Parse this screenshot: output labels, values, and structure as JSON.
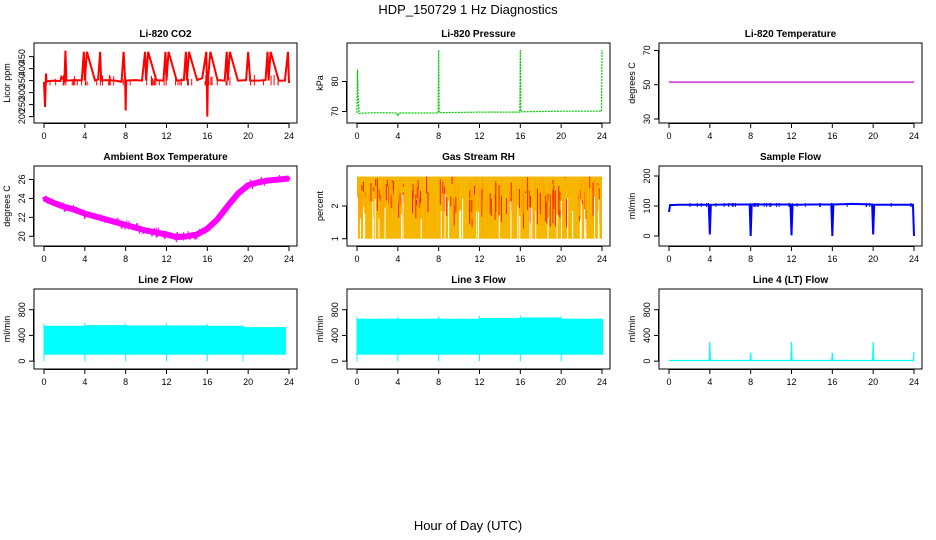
{
  "title": "HDP_150729  1 Hz Diagnostics",
  "xlabel": "Hour of Day (UTC)",
  "chart_data": [
    {
      "type": "line",
      "title": "Li-820 CO2",
      "ylabel": "Licor ppm",
      "color": "#ff0000",
      "xlim": [
        0,
        24
      ],
      "ylim": [
        190,
        490
      ],
      "xticks": [
        0,
        4,
        8,
        12,
        16,
        20,
        24
      ],
      "yticks": [
        200,
        250,
        300,
        350,
        400,
        450
      ],
      "series": [
        {
          "x": [
            0,
            0.1,
            0.2,
            0.25,
            0.4,
            1,
            1.6,
            1.7,
            2,
            2.1,
            2.2,
            3,
            3.7,
            3.9,
            4,
            4.2,
            5,
            5.3,
            5.5,
            5.6,
            6,
            7,
            7.6,
            7.8,
            7.95,
            8,
            8.05,
            9,
            9.6,
            9.9,
            10,
            10.2,
            11,
            11.7,
            11.9,
            12,
            12.2,
            13,
            13.7,
            13.9,
            14,
            14.2,
            15,
            15.5,
            15.9,
            16,
            16.05,
            16.3,
            17,
            17.7,
            17.9,
            18,
            18.2,
            19,
            19.8,
            20,
            20.2,
            21,
            21.7,
            21.9,
            22,
            22.2,
            23,
            23.6,
            23.9,
            24
          ],
          "y": [
            345,
            240,
            380,
            345,
            348,
            350,
            348,
            365,
            350,
            475,
            350,
            352,
            351,
            470,
            350,
            470,
            350,
            355,
            470,
            350,
            352,
            350,
            345,
            470,
            350,
            225,
            350,
            352,
            350,
            470,
            350,
            470,
            352,
            350,
            470,
            350,
            470,
            350,
            352,
            470,
            350,
            470,
            352,
            360,
            470,
            200,
            350,
            470,
            352,
            350,
            470,
            350,
            470,
            350,
            352,
            470,
            350,
            350,
            352,
            470,
            350,
            470,
            350,
            350,
            470,
            340
          ]
        }
      ]
    },
    {
      "type": "line",
      "title": "Li-820 Pressure",
      "ylabel": "kPa",
      "color": "#00cd00",
      "xlim": [
        0,
        24
      ],
      "ylim": [
        67.5,
        91.5
      ],
      "xticks": [
        0,
        4,
        8,
        12,
        16,
        20,
        24
      ],
      "yticks": [
        70,
        80
      ],
      "series": [
        {
          "x": [
            0,
            0.05,
            0.1,
            0.2,
            1,
            2,
            3.9,
            4,
            4.1,
            6,
            7.95,
            8,
            8.05,
            10,
            12,
            15.95,
            16,
            16.05,
            18,
            20,
            23.95,
            24
          ],
          "y": [
            69.5,
            84,
            76,
            69.4,
            69.5,
            69.6,
            69.5,
            68.5,
            69.5,
            69.5,
            69.5,
            90.5,
            69.6,
            69.7,
            69.8,
            69.8,
            90.5,
            69.9,
            70,
            70.1,
            70.1,
            90.5
          ]
        }
      ]
    },
    {
      "type": "line",
      "title": "Li-820 Temperature",
      "ylabel": "degrees C",
      "color": "#cd00cd",
      "xlim": [
        0,
        24
      ],
      "ylim": [
        30,
        72
      ],
      "xticks": [
        0,
        4,
        8,
        12,
        16,
        20,
        24
      ],
      "yticks": [
        30,
        50,
        70
      ],
      "series": [
        {
          "x": [
            0,
            24
          ],
          "y": [
            51.5,
            51.5
          ]
        }
      ]
    },
    {
      "type": "line",
      "title": "Ambient Box Temperature",
      "ylabel": "degrees C",
      "color": "#ff00ff",
      "xlim": [
        0,
        24
      ],
      "ylim": [
        19.4,
        27
      ],
      "xticks": [
        0,
        4,
        8,
        12,
        16,
        20,
        24
      ],
      "yticks": [
        20,
        22,
        24,
        26
      ],
      "series": [
        {
          "x": [
            0,
            1,
            2,
            3,
            4,
            5,
            6,
            7,
            8,
            9,
            10,
            11,
            12,
            13,
            14,
            15,
            16,
            17,
            18,
            19,
            20,
            21,
            22,
            23,
            24
          ],
          "y": [
            24,
            23.5,
            23.1,
            22.8,
            22.4,
            22.1,
            21.8,
            21.5,
            21.2,
            20.9,
            20.6,
            20.4,
            20.2,
            19.9,
            20,
            20.2,
            20.8,
            21.8,
            23.2,
            24.5,
            25.4,
            25.7,
            25.9,
            26,
            26.1
          ]
        }
      ]
    },
    {
      "type": "line",
      "title": "Gas Stream RH",
      "ylabel": "percent",
      "color": "#ffa500",
      "xlim": [
        0,
        24
      ],
      "ylim": [
        0.9,
        3.1
      ],
      "xticks": [
        0,
        4,
        8,
        12,
        16,
        20,
        24
      ],
      "yticks": [
        1.0,
        2.0
      ],
      "series": [
        {
          "name": "",
          "x": [
            0,
            24
          ],
          "y": [
            2.9,
            2.9
          ]
        },
        {
          "x": [
            0,
            24
          ],
          "y": [
            1.0,
            1.0
          ]
        }
      ]
    },
    {
      "type": "line",
      "title": "Sample Flow",
      "ylabel": "ml/min",
      "color": "#0000ff",
      "xlim": [
        0,
        24
      ],
      "ylim": [
        -20,
        220
      ],
      "xticks": [
        0,
        4,
        8,
        12,
        16,
        20,
        24
      ],
      "yticks": [
        0,
        100,
        200
      ],
      "series": [
        {
          "x": [
            0,
            0.1,
            1,
            2,
            3.9,
            4,
            4.1,
            6,
            7.9,
            8,
            8.1,
            10,
            11.9,
            12,
            12.1,
            14,
            15.9,
            16,
            16.1,
            18,
            19.9,
            20,
            20.1,
            22,
            23.9,
            24
          ],
          "y": [
            80,
            103,
            104,
            104,
            104,
            5,
            104,
            105,
            105,
            0,
            105,
            105,
            105,
            2,
            104,
            105,
            105,
            0,
            105,
            107,
            105,
            5,
            104,
            104,
            104,
            0
          ]
        }
      ]
    },
    {
      "type": "area",
      "title": "Line 2 Flow",
      "ylabel": "ml/min",
      "color": "#00ffff",
      "xlim": [
        0,
        24
      ],
      "ylim": [
        -60,
        1060
      ],
      "xticks": [
        0,
        4,
        8,
        12,
        16,
        20,
        24
      ],
      "yticks": [
        0,
        400,
        800
      ],
      "series": [
        {
          "x": [
            0,
            4,
            8,
            12,
            16,
            19.5,
            23.6
          ],
          "y": [
            550,
            560,
            555,
            555,
            550,
            530,
            530
          ]
        }
      ]
    },
    {
      "type": "area",
      "title": "Line 3 Flow",
      "ylabel": "ml/min",
      "color": "#00ffff",
      "xlim": [
        0,
        24
      ],
      "ylim": [
        -60,
        1060
      ],
      "xticks": [
        0,
        4,
        8,
        12,
        16,
        20,
        24
      ],
      "yticks": [
        0,
        400,
        800
      ],
      "series": [
        {
          "x": [
            0,
            4,
            8,
            12,
            16,
            20,
            24
          ],
          "y": [
            660,
            660,
            660,
            670,
            680,
            660,
            660
          ]
        }
      ]
    },
    {
      "type": "line",
      "title": "Line 4 (LT) Flow",
      "ylabel": "ml/min",
      "color": "#00ffff",
      "xlim": [
        0,
        24
      ],
      "ylim": [
        -60,
        1060
      ],
      "xticks": [
        0,
        4,
        8,
        12,
        16,
        20,
        24
      ],
      "yticks": [
        0,
        400,
        800
      ],
      "series": [
        {
          "x": [
            0,
            3.95,
            4,
            4.05,
            7.95,
            8,
            8.05,
            11.95,
            12,
            12.05,
            15.95,
            16,
            16.05,
            19.95,
            20,
            20.05,
            23.95,
            24
          ],
          "y": [
            10,
            10,
            300,
            10,
            10,
            130,
            10,
            10,
            300,
            10,
            10,
            130,
            10,
            10,
            300,
            10,
            10,
            140
          ]
        }
      ]
    }
  ]
}
